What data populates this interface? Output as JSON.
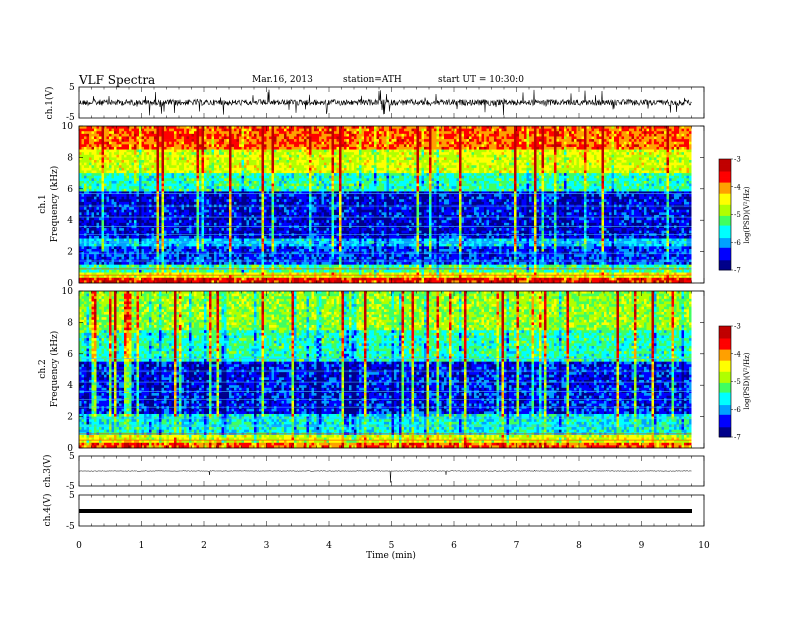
{
  "header": {
    "title": "VLF  Spectra",
    "date": "Mar.16, 2013",
    "station": "station=ATH",
    "start": "start  UT  =   10:30:0"
  },
  "panels": {
    "ch1_wave": {
      "ylabel": "ch.1(V)",
      "yticks": [
        "5",
        "-5"
      ]
    },
    "ch1_spec": {
      "ylabel_ch": "ch.1",
      "ylabel_freq": "Frequency  (kHz)",
      "yticks": [
        "10",
        "8",
        "6",
        "4",
        "2",
        "0"
      ]
    },
    "ch2_spec": {
      "ylabel_ch": "ch.2",
      "ylabel_freq": "Frequency  (kHz)",
      "yticks": [
        "10",
        "8",
        "6",
        "4",
        "2",
        "0"
      ]
    },
    "ch3_wave": {
      "ylabel": "ch.3(V)",
      "yticks": [
        "5",
        "-5"
      ]
    },
    "ch4_wave": {
      "ylabel": "ch.4(V)",
      "yticks": [
        "5",
        "-5"
      ]
    }
  },
  "colorbar": {
    "label": "log(PSD)(V²/Hz)",
    "ticks": [
      "-3",
      "-4",
      "-5",
      "-6",
      "-7"
    ]
  },
  "xaxis": {
    "label": "Time  (min)",
    "ticks": [
      "0",
      "1",
      "2",
      "3",
      "4",
      "5",
      "6",
      "7",
      "8",
      "9",
      "10"
    ]
  },
  "chart_data": [
    {
      "type": "line",
      "title": "ch.1 waveform",
      "xlabel": "Time (min)",
      "ylabel": "ch.1(V)",
      "xlim": [
        0,
        10
      ],
      "ylim": [
        -5,
        5
      ],
      "data_end_min": 9.8,
      "description": "noisy waveform around 0 V with spikes up to about ±2 V"
    },
    {
      "type": "heatmap",
      "title": "ch.1 spectrogram",
      "xlabel": "Time (min)",
      "ylabel": "Frequency (kHz)",
      "xlim": [
        0,
        10
      ],
      "ylim": [
        0,
        10
      ],
      "zlabel": "log(PSD)(V²/Hz)",
      "zlim": [
        -7,
        -3
      ],
      "colormap": [
        "#00008a",
        "#0000ff",
        "#00a0ff",
        "#00ffff",
        "#40ff60",
        "#b0ff00",
        "#ffff00",
        "#ffa000",
        "#ff0000",
        "#c00000"
      ],
      "bands_khz": [
        {
          "from": 0.0,
          "to": 0.3,
          "logpsd": -3.5
        },
        {
          "from": 0.3,
          "to": 0.6,
          "logpsd": -4.5
        },
        {
          "from": 0.6,
          "to": 1.2,
          "logpsd": -5.3
        },
        {
          "from": 1.2,
          "to": 2.4,
          "logpsd": -6.3
        },
        {
          "from": 2.4,
          "to": 2.8,
          "logpsd": -5.8
        },
        {
          "from": 2.8,
          "to": 5.8,
          "logpsd": -6.5
        },
        {
          "from": 5.8,
          "to": 7.0,
          "logpsd": -5.4
        },
        {
          "from": 7.0,
          "to": 8.5,
          "logpsd": -4.6
        },
        {
          "from": 8.5,
          "to": 10.0,
          "logpsd": -3.8
        }
      ],
      "data_end_min": 9.8
    },
    {
      "type": "heatmap",
      "title": "ch.2 spectrogram",
      "xlabel": "Time (min)",
      "ylabel": "Frequency (kHz)",
      "xlim": [
        0,
        10
      ],
      "ylim": [
        0,
        10
      ],
      "zlabel": "log(PSD)(V²/Hz)",
      "zlim": [
        -7,
        -3
      ],
      "bands_khz": [
        {
          "from": 0.0,
          "to": 0.3,
          "logpsd": -3.8
        },
        {
          "from": 0.3,
          "to": 0.8,
          "logpsd": -4.6
        },
        {
          "from": 0.8,
          "to": 2.2,
          "logpsd": -5.6
        },
        {
          "from": 2.2,
          "to": 5.5,
          "logpsd": -6.4
        },
        {
          "from": 5.5,
          "to": 7.5,
          "logpsd": -5.4
        },
        {
          "from": 7.5,
          "to": 10.0,
          "logpsd": -4.9
        }
      ],
      "data_end_min": 9.8
    },
    {
      "type": "line",
      "title": "ch.3 waveform",
      "xlabel": "Time (min)",
      "ylabel": "ch.3(V)",
      "xlim": [
        0,
        10
      ],
      "ylim": [
        -5,
        5
      ],
      "data_end_min": 9.8,
      "description": "nearly flat line near 0 V"
    },
    {
      "type": "line",
      "title": "ch.4 waveform",
      "xlabel": "Time (min)",
      "ylabel": "ch.4(V)",
      "xlim": [
        0,
        10
      ],
      "ylim": [
        -5,
        5
      ],
      "data_end_min": 9.8,
      "description": "thick flat band near 0 V"
    }
  ]
}
